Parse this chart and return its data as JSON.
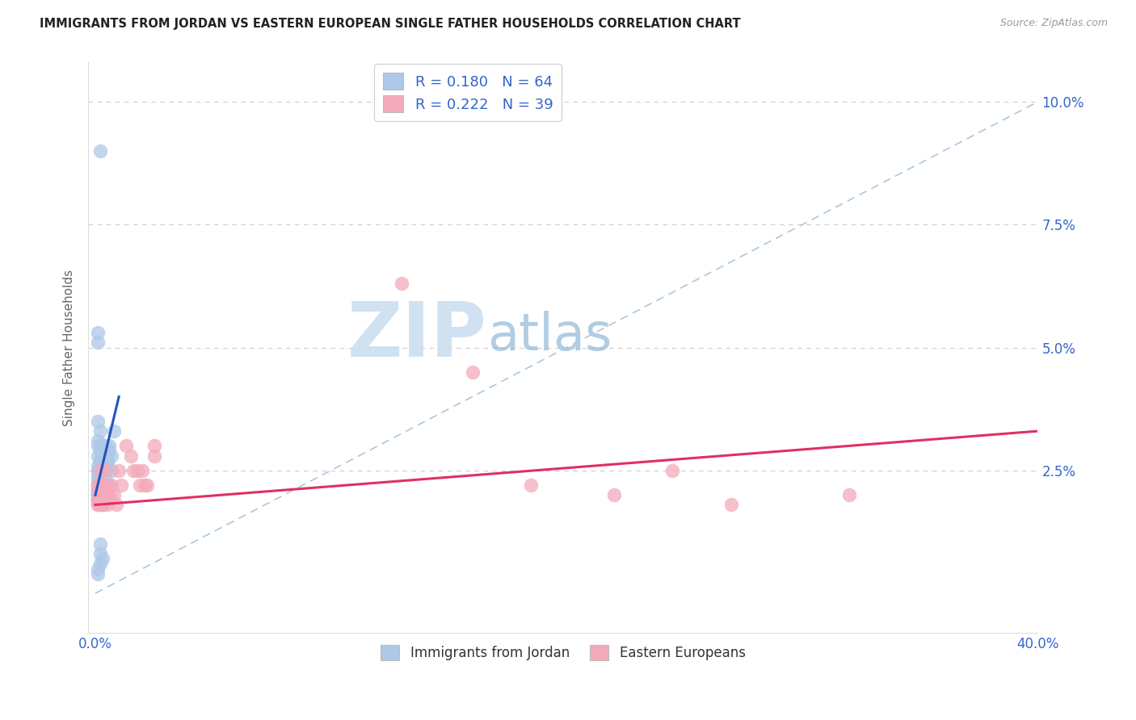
{
  "title": "IMMIGRANTS FROM JORDAN VS EASTERN EUROPEAN SINGLE FATHER HOUSEHOLDS CORRELATION CHART",
  "source": "Source: ZipAtlas.com",
  "ylabel": "Single Father Households",
  "xlim": [
    0.0,
    0.4
  ],
  "ylim": [
    -0.008,
    0.108
  ],
  "jordan_R": 0.18,
  "jordan_N": 64,
  "eastern_R": 0.222,
  "eastern_N": 39,
  "jordan_color": "#adc8e8",
  "jordan_edge_color": "#90b0d8",
  "jordan_line_color": "#2255bb",
  "eastern_color": "#f4aabb",
  "eastern_edge_color": "#e090a0",
  "eastern_line_color": "#e03060",
  "diagonal_color": "#aac8e0",
  "jordan_x": [
    0.002,
    0.001,
    0.001,
    0.001,
    0.002,
    0.001,
    0.001,
    0.001,
    0.002,
    0.001,
    0.001,
    0.001,
    0.001,
    0.001,
    0.002,
    0.001,
    0.002,
    0.001,
    0.001,
    0.001,
    0.002,
    0.001,
    0.001,
    0.002,
    0.001,
    0.001,
    0.002,
    0.001,
    0.001,
    0.001,
    0.002,
    0.001,
    0.001,
    0.003,
    0.002,
    0.003,
    0.002,
    0.003,
    0.004,
    0.003,
    0.003,
    0.004,
    0.003,
    0.004,
    0.005,
    0.004,
    0.005,
    0.006,
    0.004,
    0.005,
    0.006,
    0.007,
    0.008,
    0.006,
    0.007,
    0.003,
    0.004,
    0.003,
    0.002,
    0.002,
    0.003,
    0.002,
    0.001,
    0.001
  ],
  "jordan_y": [
    0.09,
    0.053,
    0.051,
    0.035,
    0.033,
    0.031,
    0.03,
    0.028,
    0.027,
    0.026,
    0.025,
    0.025,
    0.024,
    0.023,
    0.023,
    0.022,
    0.022,
    0.022,
    0.021,
    0.021,
    0.021,
    0.021,
    0.02,
    0.02,
    0.02,
    0.02,
    0.02,
    0.019,
    0.019,
    0.019,
    0.019,
    0.019,
    0.018,
    0.03,
    0.029,
    0.028,
    0.027,
    0.026,
    0.028,
    0.027,
    0.026,
    0.03,
    0.025,
    0.028,
    0.027,
    0.025,
    0.028,
    0.03,
    0.024,
    0.026,
    0.029,
    0.028,
    0.033,
    0.022,
    0.025,
    0.02,
    0.019,
    0.018,
    0.01,
    0.008,
    0.007,
    0.006,
    0.005,
    0.004
  ],
  "eastern_x": [
    0.001,
    0.001,
    0.001,
    0.001,
    0.002,
    0.002,
    0.002,
    0.002,
    0.003,
    0.003,
    0.003,
    0.004,
    0.004,
    0.005,
    0.005,
    0.005,
    0.006,
    0.007,
    0.008,
    0.009,
    0.01,
    0.011,
    0.013,
    0.015,
    0.016,
    0.018,
    0.019,
    0.02,
    0.021,
    0.022,
    0.025,
    0.025,
    0.13,
    0.16,
    0.185,
    0.22,
    0.245,
    0.27,
    0.32
  ],
  "eastern_y": [
    0.022,
    0.02,
    0.019,
    0.018,
    0.025,
    0.022,
    0.02,
    0.018,
    0.022,
    0.02,
    0.018,
    0.025,
    0.02,
    0.022,
    0.02,
    0.018,
    0.02,
    0.022,
    0.02,
    0.018,
    0.025,
    0.022,
    0.03,
    0.028,
    0.025,
    0.025,
    0.022,
    0.025,
    0.022,
    0.022,
    0.03,
    0.028,
    0.063,
    0.045,
    0.022,
    0.02,
    0.025,
    0.018,
    0.02
  ],
  "jordan_line_x0": 0.0,
  "jordan_line_y0": 0.02,
  "jordan_line_x1": 0.01,
  "jordan_line_y1": 0.04,
  "eastern_line_x0": 0.0,
  "eastern_line_y0": 0.018,
  "eastern_line_x1": 0.4,
  "eastern_line_y1": 0.033
}
